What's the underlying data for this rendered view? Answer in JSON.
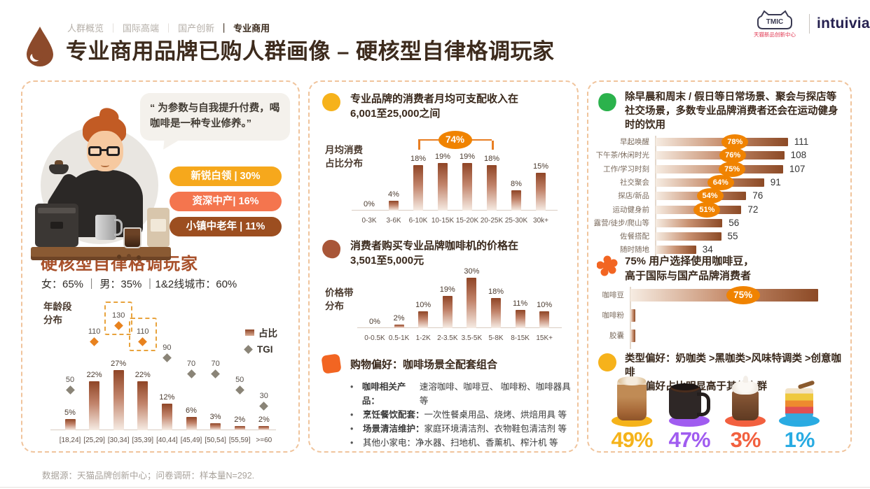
{
  "header": {
    "breadcrumb": {
      "items": [
        "人群概览",
        "国际高端",
        "国产创新"
      ],
      "separator": "｜",
      "active": "专业商用"
    },
    "title": "专业商用品牌已购人群画像 – 硬核型自律格调玩家",
    "logos": {
      "tmic": "TMIC",
      "tmic_sub": "天猫新品创新中心",
      "partner": "intuivia"
    }
  },
  "persona": {
    "quote": "“ 为参数与自我提升付费，喝咖啡是一种专业修养。”",
    "segments": [
      {
        "label": "新锐白领 | 30%",
        "color": "#F6A81C"
      },
      {
        "label": "资深中产| 16%",
        "color": "#F4754E"
      },
      {
        "label": "小镇中老年 | 11%",
        "color": "#9C4E20"
      }
    ],
    "name": "硬核型自律格调玩家",
    "stats": "女：65% ｜ 男：35%  ｜1&2线城市：60%"
  },
  "middle": {
    "income": {
      "heading": "专业品牌的消费者月均可支配收入在\n6,001至25,000之间",
      "icon_color": "#F6B21B"
    },
    "price": {
      "heading": "消费者购买专业品牌咖啡机的价格在\n3,501至5,000元",
      "icon_color": "#A85638"
    },
    "shopping": {
      "heading": "购物偏好：咖啡场景全配套组合",
      "icon_color": "#F26522",
      "bullets": [
        {
          "term": "咖啡相关产品：",
          "desc": "速溶咖啡、咖啡豆、 咖啡粉、咖啡器具 等",
          "bold": true
        },
        {
          "term": "烹饪餐饮配套：",
          "desc": "一次性餐桌用品、烧烤、烘焙用具 等",
          "bold": true
        },
        {
          "term": "场景清洁维护：",
          "desc": "家庭环境清洁剂、衣物鞋包清洁剂 等",
          "bold": true
        },
        {
          "term": "其他小家电：",
          "desc": "净水器、扫地机、香薰机、榨汁机 等",
          "bold": false
        }
      ]
    }
  },
  "right": {
    "scenes": {
      "heading": "除早晨和周末 / 假日等日常场景、聚会与探店等社交场景，多数专业品牌消费者还会在运动健身时的饮用",
      "icon_color": "#2BB24C"
    },
    "bean": {
      "heading": "75% 用户选择使用咖啡豆，\n高于国际与国产品牌消费者",
      "icon_color": "#F26522"
    },
    "types": {
      "heading": "类型偏好：奶咖类 >黑咖类>风味特调类 >创意咖啡\n黑咖偏好占比明显高于其他人群",
      "icon_color": "#F6B21B"
    }
  },
  "footer": {
    "source": "数据源：天猫品牌创新中心；问卷调研：样本量N=292."
  },
  "colors": {
    "accent_orange": "#F08300",
    "bracket_orange": "#E87E23",
    "bar_gradient_dark": "#8F4526",
    "bar_gradient_light": "#F6ECE4",
    "tgi_marker_gray": "#8A8477",
    "tgi_marker_orange": "#E8821E",
    "highlight_box": "#E8A33D",
    "panel_border": "#F0C49C",
    "title_brown": "#3D2B1D",
    "persona_name_rust": "#A8502A"
  },
  "chart_data": [
    {
      "id": "age_distribution",
      "type": "bar",
      "title": "年龄段\n分布",
      "categories": [
        "[18,24]",
        "[25,29]",
        "[30,34]",
        "[35,39]",
        "[40,44]",
        "[45,49]",
        "[50,54]",
        "[55,59]",
        ">=60"
      ],
      "series": [
        {
          "name": "占比",
          "unit": "%",
          "values": [
            5,
            22,
            27,
            22,
            12,
            6,
            3,
            2,
            2
          ]
        },
        {
          "name": "TGI",
          "values": [
            50,
            110,
            130,
            110,
            90,
            70,
            70,
            50,
            30
          ]
        }
      ],
      "highlight_boxes": [
        2,
        3
      ],
      "highlight_points": [
        1,
        2,
        3
      ],
      "legend": [
        "占比",
        "TGI"
      ],
      "legend_position": "right"
    },
    {
      "id": "monthly_spend_share",
      "type": "bar",
      "title": "月均消费\n占比分布",
      "unit": "%",
      "categories": [
        "0-3K",
        "3-6K",
        "6-10K",
        "10-15K",
        "15-20K",
        "20-25K",
        "25-30K",
        "30k+"
      ],
      "values": [
        0,
        4,
        18,
        19,
        19,
        18,
        8,
        15
      ],
      "bracket": {
        "from_index": 2,
        "to_index": 5,
        "label": "74%"
      }
    },
    {
      "id": "price_band",
      "type": "bar",
      "title": "价格带\n分布",
      "unit": "%",
      "categories": [
        "0-0.5K",
        "0.5-1K",
        "1-2K",
        "2-3.5K",
        "3.5-5K",
        "5-8K",
        "8-15K",
        "15K+"
      ],
      "values": [
        0,
        2,
        10,
        19,
        30,
        18,
        11,
        10
      ]
    },
    {
      "id": "drinking_scenes",
      "type": "hbar",
      "categories": [
        "早起唤醒",
        "下午茶/休闲时光",
        "工作/学习时刻",
        "社交聚会",
        "探店/新品",
        "运动健身前",
        "露营/徒步/爬山等",
        "佐餐搭配",
        "随时随地"
      ],
      "values": [
        111,
        108,
        107,
        91,
        76,
        72,
        56,
        55,
        34
      ],
      "badges": [
        "78%",
        "76%",
        "75%",
        "64%",
        "54%",
        "51%",
        null,
        null,
        null
      ]
    },
    {
      "id": "coffee_form",
      "type": "hbar",
      "unit": "%",
      "categories": [
        "咖啡豆",
        "咖啡粉",
        "胶囊"
      ],
      "values": [
        75,
        2,
        2
      ],
      "badges": [
        "75%",
        null,
        null
      ]
    },
    {
      "id": "type_preference",
      "type": "icon-stat",
      "items": [
        {
          "label": "奶咖类",
          "value": "49%",
          "color": "#F5B31A"
        },
        {
          "label": "黑咖类",
          "value": "47%",
          "color": "#A05CF0"
        },
        {
          "label": "风味特调类",
          "value": "3%",
          "color": "#F2603F"
        },
        {
          "label": "创意咖啡",
          "value": "1%",
          "color": "#29ABE2"
        }
      ]
    }
  ]
}
